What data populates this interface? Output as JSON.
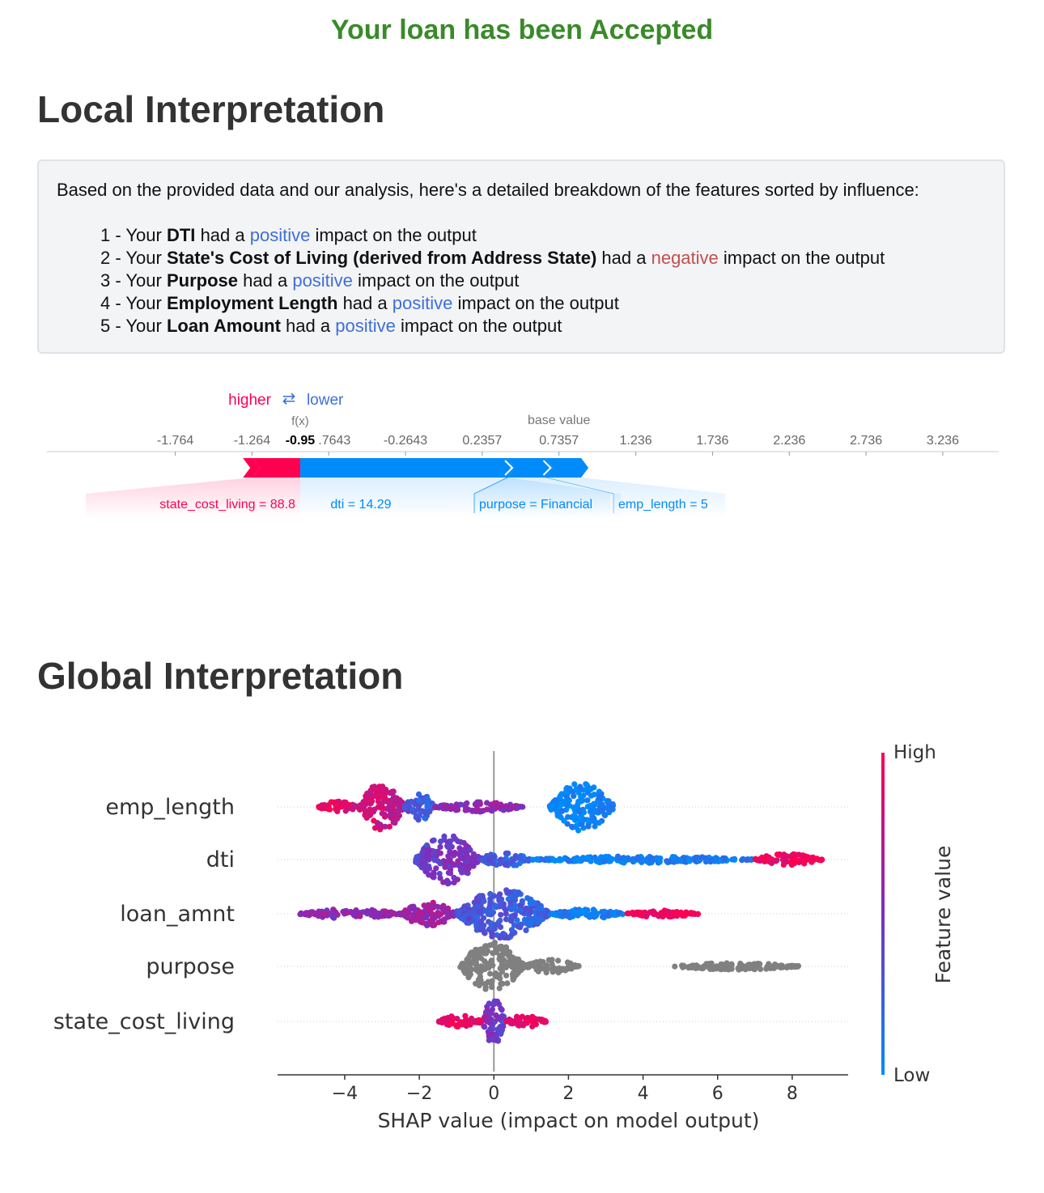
{
  "status_message": "Your loan has been Accepted",
  "local": {
    "title": "Local Interpretation",
    "summary_intro": "Based on the provided data and our analysis, here's a detailed breakdown of the features sorted by influence:",
    "items": [
      {
        "num": "1",
        "prefix": "Your",
        "feature": "DTI",
        "mid": "had a",
        "impact": "positive",
        "suffix": "impact on the output"
      },
      {
        "num": "2",
        "prefix": "Your",
        "feature": "State's Cost of Living (derived from Address State)",
        "mid": "had a",
        "impact": "negative",
        "suffix": "impact on the output"
      },
      {
        "num": "3",
        "prefix": "Your",
        "feature": "Purpose",
        "mid": "had a",
        "impact": "positive",
        "suffix": "impact on the output"
      },
      {
        "num": "4",
        "prefix": "Your",
        "feature": "Employment Length",
        "mid": "had a",
        "impact": "positive",
        "suffix": "impact on the output"
      },
      {
        "num": "5",
        "prefix": "Your",
        "feature": "Loan Amount",
        "mid": "had a",
        "impact": "positive",
        "suffix": "impact on the output"
      }
    ]
  },
  "global": {
    "title": "Global Interpretation"
  },
  "colors": {
    "accepted": "#3a8a2a",
    "positive": "#3f6fd8",
    "negative": "#c0504d",
    "shap_high": "#ff0051",
    "shap_low": "#008bfb",
    "shap_mid": "#7b2fbf"
  },
  "chart_data": [
    {
      "type": "force",
      "legend_higher": "higher",
      "legend_arrow": "⇄",
      "legend_lower": "lower",
      "fx_label": "f(x)",
      "fx_value": -0.95,
      "fx_text": "-0.95",
      "base_label": "base value",
      "base_value": 0.7357,
      "ticks": [
        "-1.764",
        "-1.264",
        "-0.7643",
        "-0.2643",
        "0.2357",
        "0.7357",
        "1.236",
        "1.736",
        "2.236",
        "2.736",
        "3.236"
      ],
      "tick_values": [
        -1.764,
        -1.264,
        -0.7643,
        -0.2643,
        0.2357,
        0.7357,
        1.236,
        1.736,
        2.236,
        2.736,
        3.236
      ],
      "x_range": [
        -2.6,
        3.6
      ],
      "features": [
        {
          "label": "state_cost_living = 88.8",
          "effect": "higher",
          "from": -1.26,
          "to": -0.95
        },
        {
          "label": "dti = 14.29",
          "effect": "lower",
          "from": -0.95,
          "to": 0.4
        },
        {
          "label": "purpose = Financial",
          "effect": "lower",
          "from": 0.4,
          "to": 0.65
        },
        {
          "label": "emp_length = 5",
          "effect": "lower",
          "from": 0.65,
          "to": 0.88
        }
      ]
    },
    {
      "type": "scatter",
      "subtype": "beeswarm",
      "xlabel": "SHAP value (impact on model output)",
      "xlim": [
        -5.8,
        9.5
      ],
      "xticks": [
        -4,
        -2,
        0,
        2,
        4,
        6,
        8
      ],
      "xtick_labels": [
        "−4",
        "−2",
        "0",
        "2",
        "4",
        "6",
        "8"
      ],
      "colorbar_label": "Feature value",
      "colorbar_high": "High",
      "colorbar_low": "Low",
      "features": [
        {
          "name": "emp_length",
          "segments": [
            {
              "x0": -4.7,
              "x1": -3.6,
              "c0": 0.95,
              "c1": 0.85,
              "w": 0.25
            },
            {
              "x0": -3.6,
              "x1": -2.4,
              "c0": 0.85,
              "c1": 0.75,
              "w": 1.0
            },
            {
              "x0": -2.4,
              "x1": -1.6,
              "c0": 0.35,
              "c1": 0.2,
              "w": 0.6
            },
            {
              "x0": -1.6,
              "x1": 0.8,
              "c0": 0.55,
              "c1": 0.6,
              "w": 0.2
            },
            {
              "x0": 1.5,
              "x1": 3.2,
              "c0": 0.0,
              "c1": 0.05,
              "w": 1.0
            }
          ]
        },
        {
          "name": "dti",
          "segments": [
            {
              "x0": -2.1,
              "x1": -0.4,
              "c0": 0.4,
              "c1": 0.55,
              "w": 1.0
            },
            {
              "x0": -0.4,
              "x1": 1.0,
              "c0": 0.3,
              "c1": 0.2,
              "w": 0.3
            },
            {
              "x0": 1.0,
              "x1": 7.0,
              "c0": 0.05,
              "c1": 0.1,
              "w": 0.14
            },
            {
              "x0": 7.0,
              "x1": 8.8,
              "c0": 0.9,
              "c1": 1.0,
              "w": 0.25
            }
          ]
        },
        {
          "name": "loan_amnt",
          "segments": [
            {
              "x0": -5.2,
              "x1": -2.5,
              "c0": 0.55,
              "c1": 0.6,
              "w": 0.2
            },
            {
              "x0": -2.5,
              "x1": -1.0,
              "c0": 0.6,
              "c1": 0.65,
              "w": 0.5
            },
            {
              "x0": -1.0,
              "x1": 1.5,
              "c0": 0.35,
              "c1": 0.2,
              "w": 1.0
            },
            {
              "x0": 1.5,
              "x1": 3.5,
              "c0": 0.1,
              "c1": 0.05,
              "w": 0.2
            },
            {
              "x0": 3.5,
              "x1": 5.5,
              "c0": 0.95,
              "c1": 1.0,
              "w": 0.14
            }
          ]
        },
        {
          "name": "purpose",
          "gray": true,
          "segments": [
            {
              "x0": -0.9,
              "x1": 0.8,
              "c0": 0,
              "c1": 0,
              "w": 1.0
            },
            {
              "x0": 0.8,
              "x1": 2.3,
              "c0": 0,
              "c1": 0,
              "w": 0.28
            },
            {
              "x0": 4.8,
              "x1": 8.2,
              "c0": 0,
              "c1": 0,
              "w": 0.14
            }
          ]
        },
        {
          "name": "state_cost_living",
          "segments": [
            {
              "x0": -1.5,
              "x1": -0.3,
              "c0": 0.95,
              "c1": 0.9,
              "w": 0.25
            },
            {
              "x0": -0.3,
              "x1": 0.3,
              "c0": 0.6,
              "c1": 0.3,
              "w": 1.0
            },
            {
              "x0": 0.3,
              "x1": 1.4,
              "c0": 0.9,
              "c1": 0.95,
              "w": 0.25
            }
          ]
        }
      ]
    }
  ]
}
